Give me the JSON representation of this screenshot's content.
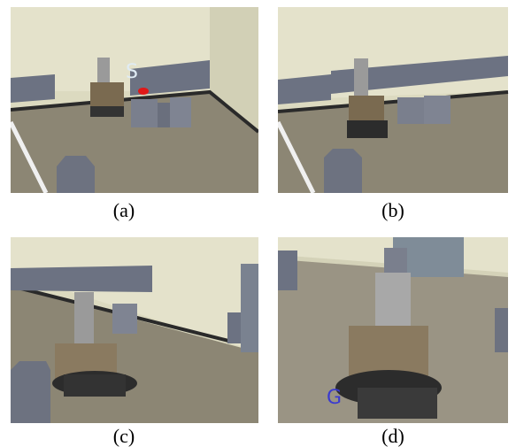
{
  "panels": [
    {
      "label": "(a)",
      "annotation": "S"
    },
    {
      "label": "(b)"
    },
    {
      "label": "(c)"
    },
    {
      "label": "(d)",
      "annotation": "G"
    }
  ]
}
